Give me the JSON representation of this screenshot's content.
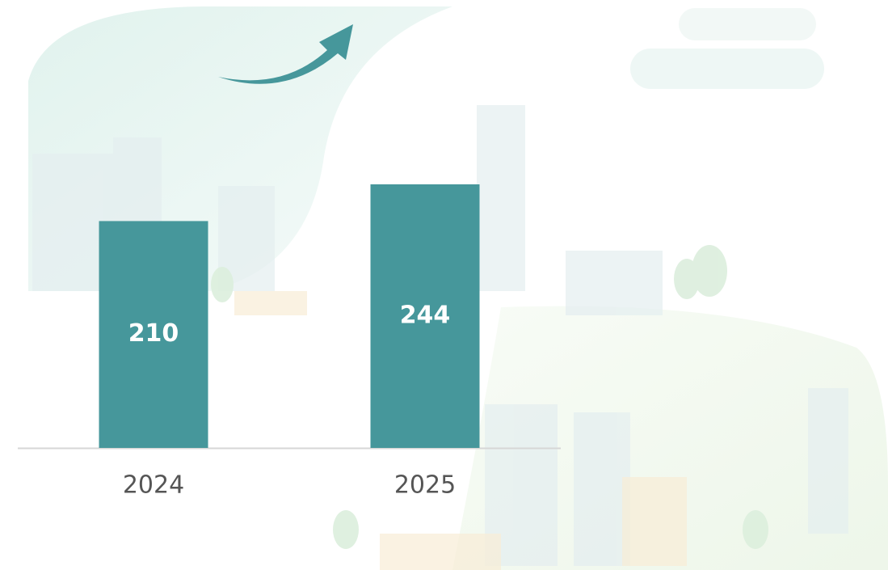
{
  "chart_data": {
    "type": "bar",
    "categories": [
      "2024",
      "2025"
    ],
    "values": [
      210,
      244
    ],
    "color": "#46979b"
  }
}
